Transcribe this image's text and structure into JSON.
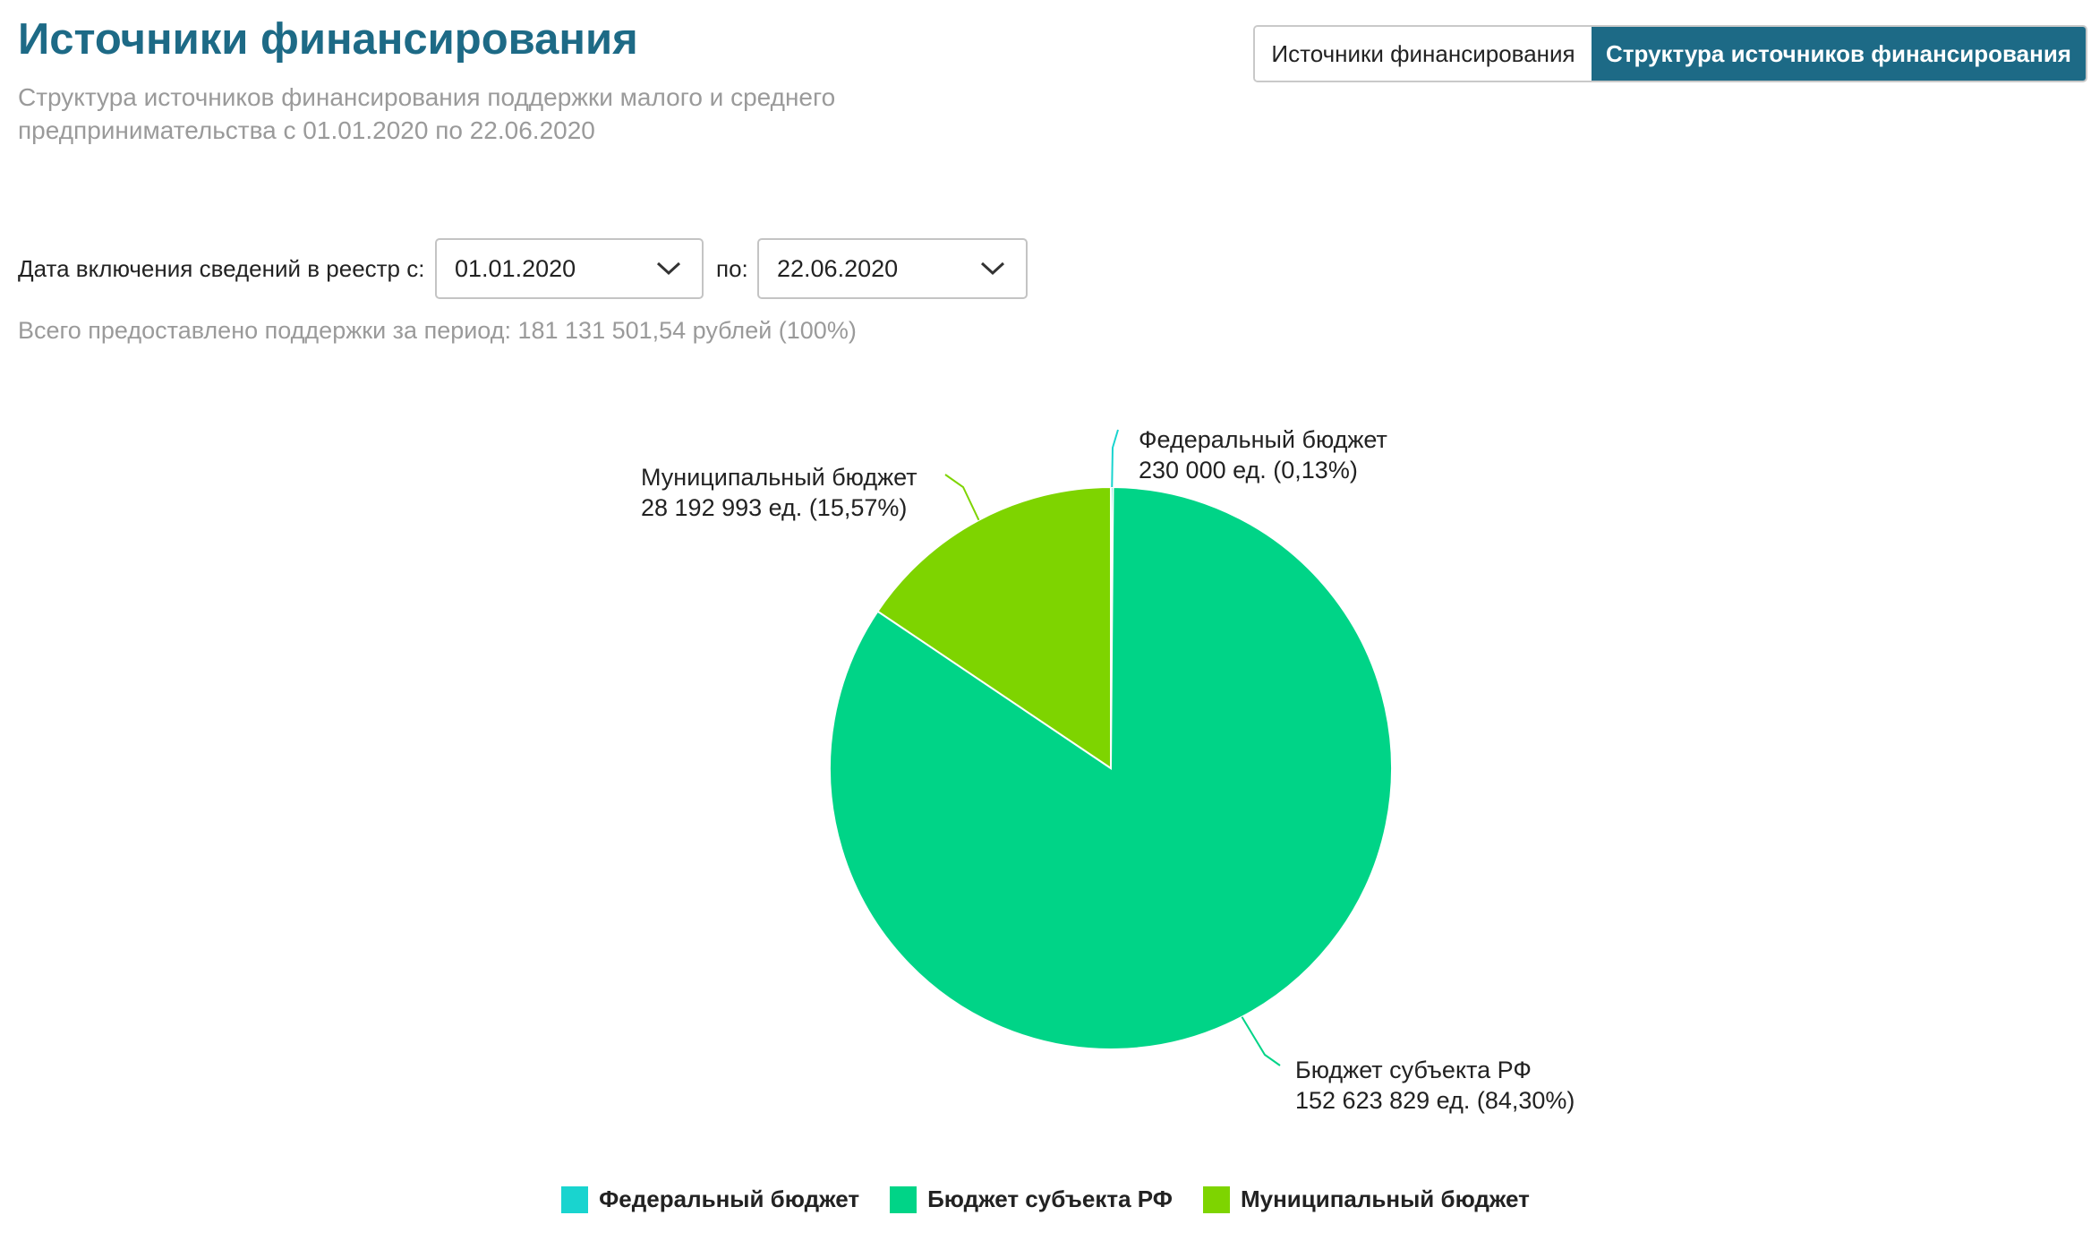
{
  "header": {
    "title": "Источники финансирования",
    "subtitle": "Структура источников финансирования поддержки малого и среднего предпринимательства с 01.01.2020 по 22.06.2020"
  },
  "tabs": [
    {
      "label": "Источники финансирования",
      "active": false
    },
    {
      "label": "Структура источников финансирования",
      "active": true
    }
  ],
  "filters": {
    "from_label": "Дата включения сведений в реестр с:",
    "from_value": "01.01.2020",
    "to_label": "по:",
    "to_value": "22.06.2020"
  },
  "summary": {
    "total_text": "Всего предоставлено поддержки за период: 181 131 501,54 рублей (100%)"
  },
  "colors": {
    "federal": "#19d4cf",
    "subject": "#00d487",
    "municipal": "#7ed400",
    "accent": "#1d6a86"
  },
  "icons": {
    "dropdown": "chevron-down-icon"
  },
  "chart_data": {
    "type": "pie",
    "title": "",
    "series": [
      {
        "name": "Федеральный бюджет",
        "value": 230000,
        "percent": 0.13,
        "label_line1": "Федеральный бюджет",
        "label_line2": "230 000 ед. (0,13%)",
        "color": "#19d4cf"
      },
      {
        "name": "Бюджет субъекта РФ",
        "value": 152623829,
        "percent": 84.3,
        "label_line1": "Бюджет субъекта РФ",
        "label_line2": "152 623 829 ед. (84,30%)",
        "color": "#00d487"
      },
      {
        "name": "Муниципальный бюджет",
        "value": 28192993,
        "percent": 15.57,
        "label_line1": "Муниципальный бюджет",
        "label_line2": "28 192 993 ед. (15,57%)",
        "color": "#7ed400"
      }
    ],
    "legend": [
      "Федеральный бюджет",
      "Бюджет субъекта РФ",
      "Муниципальный бюджет"
    ],
    "legend_position": "bottom"
  }
}
